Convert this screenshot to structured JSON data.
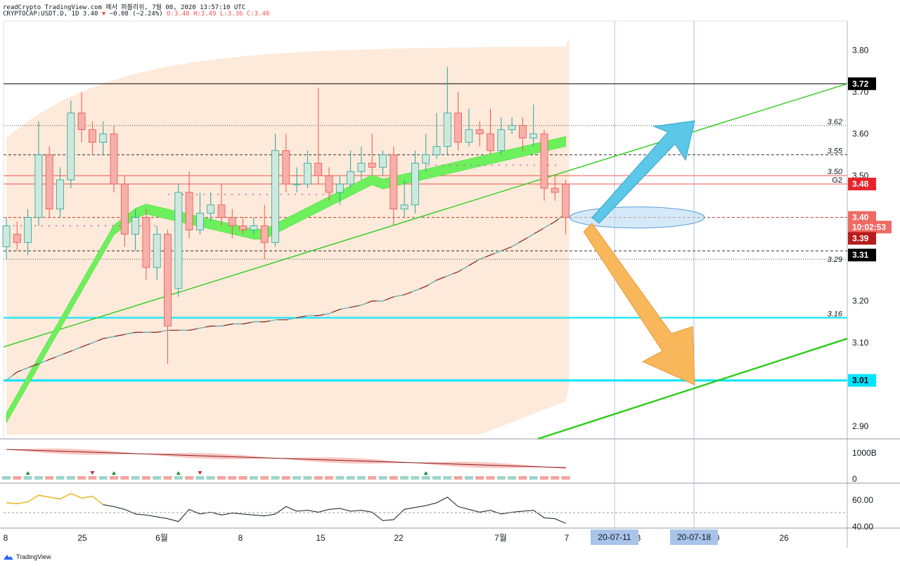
{
  "header": {
    "line1": "readCrypto TradingView.com 에서 퍼블리쉬, 7월 08, 2020 13:57:10 UTC",
    "symbol": "CRYPTOCAP:USDT.D, 1D",
    "last": "3.40",
    "change": "−0.08 (−2.24%)",
    "ohlc": "O:3.48 H:3.49 L:3.36 C:3.40"
  },
  "brand": "TradingView",
  "colors": {
    "up_body": "#cfe8dd",
    "up_border": "#26a69a",
    "down_body": "#f5b0aa",
    "down_border": "#ef5350",
    "cyan": "#00e5ff",
    "green": "#2ecc1a",
    "band": "#fde6d4",
    "blue_arrow": "#5bc8e8",
    "orange_arrow": "#f8b75a"
  },
  "chart_data": {
    "type": "candlestick",
    "y_range": [
      2.87,
      3.87
    ],
    "y_ticks": [
      "3.80",
      "3.70",
      "3.60",
      "3.50",
      "3.20",
      "3.10",
      "2.90"
    ],
    "x_ticks": [
      "8",
      "25",
      "6월",
      "8",
      "15",
      "22",
      "7월",
      "7",
      "3",
      "0",
      "26"
    ],
    "date_badges": [
      "20-07-11",
      "20-07-18"
    ],
    "price_badges": [
      {
        "text": "3.72",
        "y": 3.72,
        "bg": "#000000",
        "fg": "#ffffff"
      },
      {
        "text": "3.48",
        "y": 3.48,
        "bg": "#e8242b",
        "fg": "#ffffff"
      },
      {
        "text": "3.40",
        "y": 3.4,
        "bg": "#ef6a64",
        "fg": "#ffffff"
      },
      {
        "text": "10:02:53",
        "y": 3.377,
        "bg": "#ef6a64",
        "fg": "#ffffff"
      },
      {
        "text": "3.39",
        "y": 3.35,
        "bg": "#b71c1c",
        "fg": "#ffffff"
      },
      {
        "text": "3.31",
        "y": 3.31,
        "bg": "#000000",
        "fg": "#ffffff"
      },
      {
        "text": "3.01",
        "y": 3.01,
        "bg": "#00e5ff",
        "fg": "#000000"
      }
    ],
    "level_labels": [
      {
        "text": "3.62",
        "y": 3.62
      },
      {
        "text": "3.55",
        "y": 3.55
      },
      {
        "text": "3.50",
        "y": 3.5
      },
      {
        "text": "G2",
        "y": 3.48
      },
      {
        "text": "3.29",
        "y": 3.29
      },
      {
        "text": "3.16",
        "y": 3.16
      }
    ],
    "horizontal_levels": [
      {
        "y": 3.72,
        "color": "#000000",
        "style": "solid"
      },
      {
        "y": 3.62,
        "color": "#555555",
        "style": "dotted"
      },
      {
        "y": 3.55,
        "color": "#333333",
        "style": "dashed"
      },
      {
        "y": 3.5,
        "color": "#ef5350",
        "style": "solid"
      },
      {
        "y": 3.48,
        "color": "#ef5350",
        "style": "solid"
      },
      {
        "y": 3.4,
        "color": "#c0392b",
        "style": "dashed"
      },
      {
        "y": 3.32,
        "color": "#333333",
        "style": "dashed"
      },
      {
        "y": 3.3,
        "color": "#555555",
        "style": "dotted"
      },
      {
        "y": 3.16,
        "color": "#00e5ff",
        "style": "solid"
      },
      {
        "y": 3.01,
        "color": "#00e5ff",
        "style": "solid"
      }
    ],
    "candles": [
      [
        3.33,
        3.38,
        3.4,
        3.3
      ],
      [
        3.36,
        3.34,
        3.39,
        3.32
      ],
      [
        3.34,
        3.4,
        3.42,
        3.31
      ],
      [
        3.4,
        3.55,
        3.63,
        3.38
      ],
      [
        3.55,
        3.42,
        3.57,
        3.4
      ],
      [
        3.42,
        3.49,
        3.52,
        3.4
      ],
      [
        3.49,
        3.65,
        3.68,
        3.47
      ],
      [
        3.65,
        3.61,
        3.7,
        3.58
      ],
      [
        3.61,
        3.58,
        3.63,
        3.55
      ],
      [
        3.58,
        3.6,
        3.63,
        3.55
      ],
      [
        3.6,
        3.48,
        3.62,
        3.46
      ],
      [
        3.48,
        3.36,
        3.5,
        3.33
      ],
      [
        3.36,
        3.4,
        3.42,
        3.32
      ],
      [
        3.4,
        3.28,
        3.42,
        3.25
      ],
      [
        3.28,
        3.36,
        3.38,
        3.25
      ],
      [
        3.36,
        3.14,
        3.37,
        3.05
      ],
      [
        3.23,
        3.46,
        3.48,
        3.21
      ],
      [
        3.46,
        3.37,
        3.51,
        3.35
      ],
      [
        3.37,
        3.41,
        3.46,
        3.36
      ],
      [
        3.41,
        3.43,
        3.46,
        3.39
      ],
      [
        3.43,
        3.4,
        3.48,
        3.38
      ],
      [
        3.4,
        3.38,
        3.42,
        3.35
      ],
      [
        3.38,
        3.37,
        3.4,
        3.36
      ],
      [
        3.37,
        3.38,
        3.4,
        3.36
      ],
      [
        3.38,
        3.34,
        3.43,
        3.3
      ],
      [
        3.34,
        3.56,
        3.6,
        3.33
      ],
      [
        3.56,
        3.48,
        3.6,
        3.46
      ],
      [
        3.48,
        3.48,
        3.52,
        3.46
      ],
      [
        3.48,
        3.53,
        3.56,
        3.47
      ],
      [
        3.53,
        3.5,
        3.71,
        3.48
      ],
      [
        3.5,
        3.46,
        3.52,
        3.44
      ],
      [
        3.46,
        3.48,
        3.5,
        3.43
      ],
      [
        3.48,
        3.51,
        3.56,
        3.47
      ],
      [
        3.51,
        3.53,
        3.57,
        3.49
      ],
      [
        3.53,
        3.52,
        3.6,
        3.5
      ],
      [
        3.52,
        3.55,
        3.56,
        3.5
      ],
      [
        3.55,
        3.42,
        3.57,
        3.38
      ],
      [
        3.42,
        3.43,
        3.49,
        3.4
      ],
      [
        3.43,
        3.53,
        3.56,
        3.41
      ],
      [
        3.53,
        3.55,
        3.6,
        3.51
      ],
      [
        3.55,
        3.57,
        3.65,
        3.54
      ],
      [
        3.57,
        3.65,
        3.76,
        3.55
      ],
      [
        3.65,
        3.58,
        3.7,
        3.56
      ],
      [
        3.58,
        3.61,
        3.66,
        3.57
      ],
      [
        3.61,
        3.6,
        3.63,
        3.57
      ],
      [
        3.6,
        3.56,
        3.66,
        3.55
      ],
      [
        3.56,
        3.61,
        3.64,
        3.55
      ],
      [
        3.61,
        3.62,
        3.64,
        3.6
      ],
      [
        3.62,
        3.59,
        3.64,
        3.56
      ],
      [
        3.59,
        3.6,
        3.67,
        3.57
      ],
      [
        3.6,
        3.47,
        3.61,
        3.44
      ],
      [
        3.47,
        3.46,
        3.5,
        3.44
      ],
      [
        3.48,
        3.4,
        3.49,
        3.36
      ]
    ],
    "sma_long": [
      3.01,
      3.03,
      3.04,
      3.05,
      3.06,
      3.07,
      3.08,
      3.09,
      3.1,
      3.11,
      3.115,
      3.12,
      3.125,
      3.125,
      3.125,
      3.13,
      3.13,
      3.13,
      3.135,
      3.14,
      3.14,
      3.145,
      3.145,
      3.15,
      3.15,
      3.155,
      3.155,
      3.16,
      3.165,
      3.165,
      3.17,
      3.18,
      3.185,
      3.19,
      3.2,
      3.2,
      3.21,
      3.215,
      3.225,
      3.235,
      3.25,
      3.26,
      3.27,
      3.285,
      3.3,
      3.31,
      3.32,
      3.33,
      3.345,
      3.36,
      3.375,
      3.39,
      3.41
    ]
  }
}
